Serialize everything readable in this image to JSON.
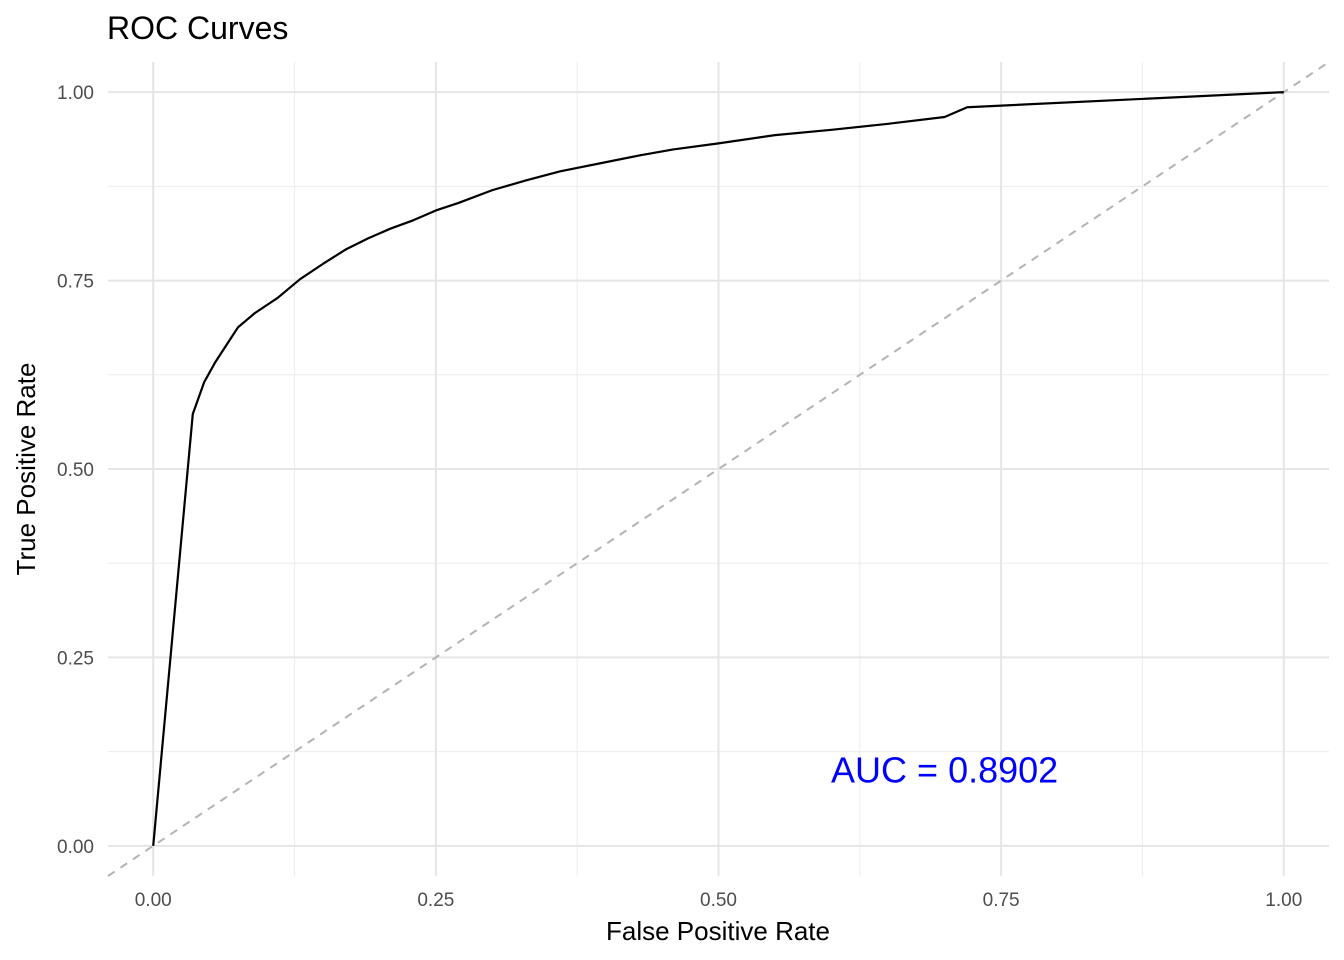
{
  "chart_data": {
    "type": "line",
    "title": "ROC Curves",
    "xlabel": "False Positive Rate",
    "ylabel": "True Positive Rate",
    "xlim": [
      -0.04,
      1.04
    ],
    "ylim": [
      -0.04,
      1.04
    ],
    "x_ticks": [
      0,
      0.25,
      0.5,
      0.75,
      1
    ],
    "x_tick_labels": [
      "0.00",
      "0.25",
      "0.50",
      "0.75",
      "1.00"
    ],
    "y_ticks": [
      0,
      0.25,
      0.5,
      0.75,
      1
    ],
    "y_tick_labels": [
      "0.00",
      "0.25",
      "0.50",
      "0.75",
      "1.00"
    ],
    "grid": true,
    "legend": "none",
    "series": [
      {
        "color": "#000000",
        "style": "solid",
        "x": [
          0,
          0.035,
          0.045,
          0.055,
          0.065,
          0.075,
          0.09,
          0.11,
          0.13,
          0.15,
          0.17,
          0.19,
          0.21,
          0.23,
          0.25,
          0.27,
          0.3,
          0.33,
          0.36,
          0.4,
          0.43,
          0.46,
          0.5,
          0.55,
          0.6,
          0.65,
          0.7,
          0.72,
          1
        ],
        "y": [
          0,
          0.573,
          0.615,
          0.642,
          0.665,
          0.688,
          0.707,
          0.727,
          0.752,
          0.772,
          0.791,
          0.806,
          0.819,
          0.83,
          0.843,
          0.853,
          0.87,
          0.883,
          0.895,
          0.907,
          0.916,
          0.924,
          0.932,
          0.943,
          0.95,
          0.958,
          0.967,
          0.98,
          1
        ]
      },
      {
        "color": "#b3b3b3",
        "style": "dashed",
        "x": [
          -0.04,
          1.04
        ],
        "y": [
          -0.04,
          1.04
        ]
      }
    ],
    "annotations": [
      {
        "text": "AUC = 0.8902",
        "x": 0.7,
        "y": 0.1,
        "color": "#0000ff"
      }
    ]
  }
}
